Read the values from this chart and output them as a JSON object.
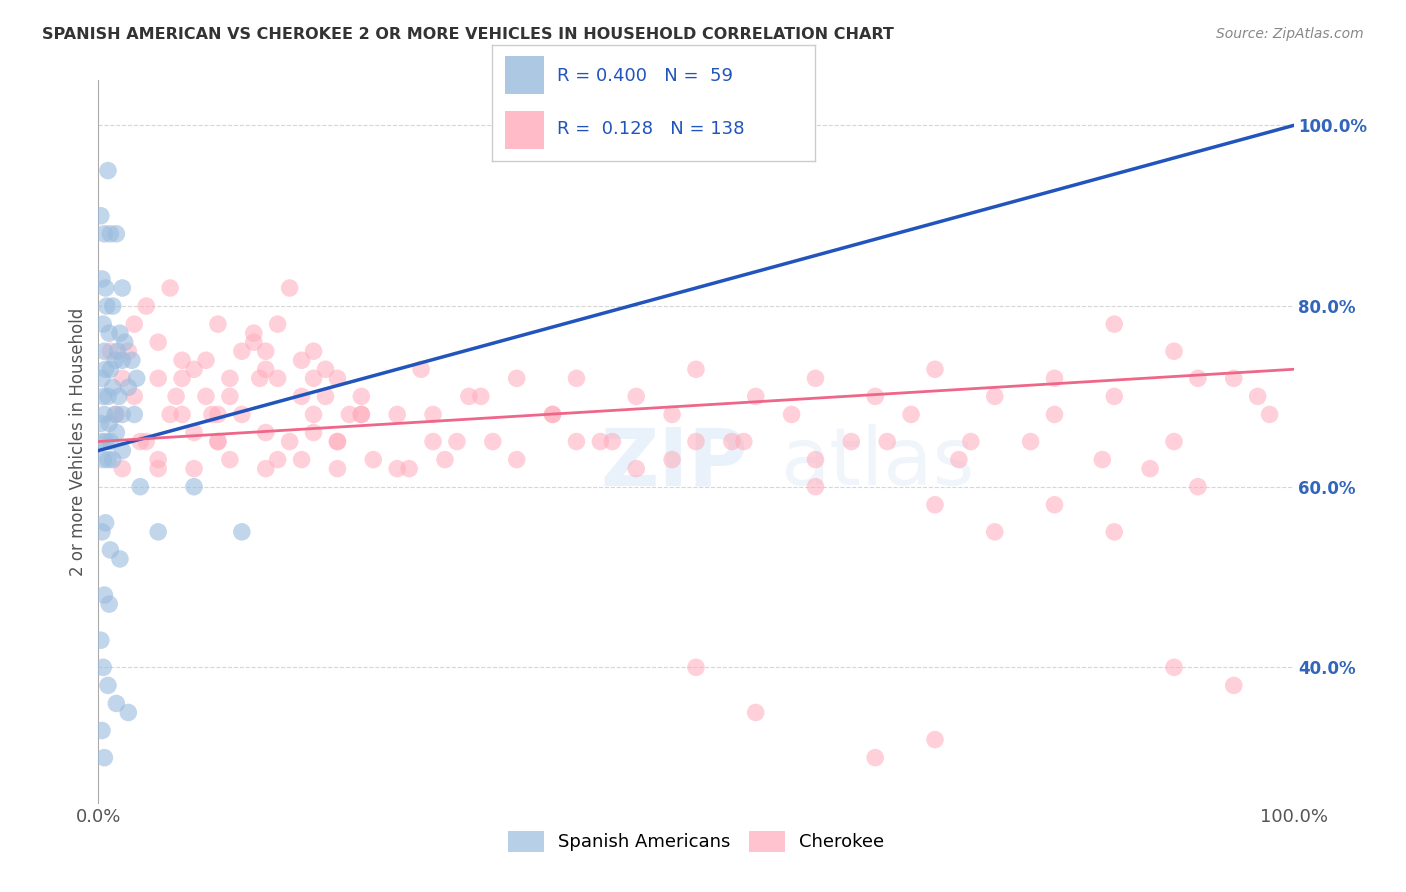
{
  "title": "SPANISH AMERICAN VS CHEROKEE 2 OR MORE VEHICLES IN HOUSEHOLD CORRELATION CHART",
  "source": "Source: ZipAtlas.com",
  "ylabel": "2 or more Vehicles in Household",
  "legend_label1": "Spanish Americans",
  "legend_label2": "Cherokee",
  "R1": "0.400",
  "N1": "59",
  "R2": "0.128",
  "N2": "138",
  "blue_color": "#99BBDD",
  "pink_color": "#FFAABB",
  "blue_line_color": "#2255BB",
  "pink_line_color": "#EE6688",
  "blue_scatter": [
    [
      0.2,
      90
    ],
    [
      0.5,
      88
    ],
    [
      0.8,
      95
    ],
    [
      1.0,
      88
    ],
    [
      0.3,
      83
    ],
    [
      0.6,
      82
    ],
    [
      1.5,
      88
    ],
    [
      2.0,
      82
    ],
    [
      0.4,
      78
    ],
    [
      0.7,
      80
    ],
    [
      1.2,
      80
    ],
    [
      1.8,
      77
    ],
    [
      0.5,
      75
    ],
    [
      0.9,
      77
    ],
    [
      1.6,
      75
    ],
    [
      2.2,
      76
    ],
    [
      0.3,
      72
    ],
    [
      0.6,
      73
    ],
    [
      1.0,
      73
    ],
    [
      1.4,
      74
    ],
    [
      2.0,
      74
    ],
    [
      2.8,
      74
    ],
    [
      0.4,
      70
    ],
    [
      0.8,
      70
    ],
    [
      1.2,
      71
    ],
    [
      1.7,
      70
    ],
    [
      2.5,
      71
    ],
    [
      3.2,
      72
    ],
    [
      0.2,
      67
    ],
    [
      0.5,
      68
    ],
    [
      0.9,
      67
    ],
    [
      1.4,
      68
    ],
    [
      2.0,
      68
    ],
    [
      3.0,
      68
    ],
    [
      0.3,
      65
    ],
    [
      0.6,
      65
    ],
    [
      1.0,
      65
    ],
    [
      1.5,
      66
    ],
    [
      0.4,
      63
    ],
    [
      0.8,
      63
    ],
    [
      1.2,
      63
    ],
    [
      2.0,
      64
    ],
    [
      0.3,
      55
    ],
    [
      0.6,
      56
    ],
    [
      1.0,
      53
    ],
    [
      1.8,
      52
    ],
    [
      0.5,
      48
    ],
    [
      0.9,
      47
    ],
    [
      0.2,
      43
    ],
    [
      0.4,
      40
    ],
    [
      0.8,
      38
    ],
    [
      1.5,
      36
    ],
    [
      0.3,
      33
    ],
    [
      0.5,
      30
    ],
    [
      3.5,
      60
    ],
    [
      5.0,
      55
    ],
    [
      8.0,
      60
    ],
    [
      12.0,
      55
    ],
    [
      2.5,
      35
    ]
  ],
  "pink_scatter": [
    [
      1.0,
      75
    ],
    [
      2.0,
      72
    ],
    [
      3.0,
      78
    ],
    [
      4.0,
      80
    ],
    [
      5.0,
      76
    ],
    [
      6.0,
      82
    ],
    [
      7.0,
      74
    ],
    [
      8.0,
      73
    ],
    [
      9.0,
      70
    ],
    [
      10.0,
      68
    ],
    [
      11.0,
      72
    ],
    [
      12.0,
      75
    ],
    [
      13.0,
      77
    ],
    [
      14.0,
      73
    ],
    [
      15.0,
      78
    ],
    [
      16.0,
      82
    ],
    [
      17.0,
      70
    ],
    [
      18.0,
      75
    ],
    [
      19.0,
      73
    ],
    [
      20.0,
      72
    ],
    [
      3.0,
      70
    ],
    [
      5.0,
      72
    ],
    [
      7.0,
      68
    ],
    [
      9.0,
      74
    ],
    [
      11.0,
      70
    ],
    [
      13.0,
      76
    ],
    [
      15.0,
      72
    ],
    [
      17.0,
      74
    ],
    [
      19.0,
      70
    ],
    [
      21.0,
      68
    ],
    [
      4.0,
      65
    ],
    [
      6.0,
      68
    ],
    [
      8.0,
      66
    ],
    [
      10.0,
      65
    ],
    [
      12.0,
      68
    ],
    [
      14.0,
      66
    ],
    [
      16.0,
      65
    ],
    [
      18.0,
      68
    ],
    [
      20.0,
      65
    ],
    [
      22.0,
      68
    ],
    [
      2.0,
      62
    ],
    [
      5.0,
      63
    ],
    [
      8.0,
      62
    ],
    [
      11.0,
      63
    ],
    [
      14.0,
      62
    ],
    [
      17.0,
      63
    ],
    [
      20.0,
      62
    ],
    [
      23.0,
      63
    ],
    [
      26.0,
      62
    ],
    [
      29.0,
      63
    ],
    [
      1.5,
      68
    ],
    [
      3.5,
      65
    ],
    [
      6.5,
      70
    ],
    [
      9.5,
      68
    ],
    [
      13.5,
      72
    ],
    [
      18.0,
      66
    ],
    [
      22.0,
      70
    ],
    [
      25.0,
      68
    ],
    [
      28.0,
      65
    ],
    [
      32.0,
      70
    ],
    [
      2.5,
      75
    ],
    [
      7.0,
      72
    ],
    [
      10.0,
      78
    ],
    [
      14.0,
      75
    ],
    [
      18.0,
      72
    ],
    [
      22.0,
      68
    ],
    [
      27.0,
      73
    ],
    [
      31.0,
      70
    ],
    [
      35.0,
      72
    ],
    [
      38.0,
      68
    ],
    [
      5.0,
      62
    ],
    [
      10.0,
      65
    ],
    [
      15.0,
      63
    ],
    [
      20.0,
      65
    ],
    [
      25.0,
      62
    ],
    [
      30.0,
      65
    ],
    [
      35.0,
      63
    ],
    [
      40.0,
      65
    ],
    [
      45.0,
      62
    ],
    [
      50.0,
      65
    ],
    [
      28.0,
      68
    ],
    [
      33.0,
      65
    ],
    [
      38.0,
      68
    ],
    [
      43.0,
      65
    ],
    [
      48.0,
      68
    ],
    [
      53.0,
      65
    ],
    [
      58.0,
      68
    ],
    [
      63.0,
      65
    ],
    [
      68.0,
      68
    ],
    [
      73.0,
      65
    ],
    [
      40.0,
      72
    ],
    [
      45.0,
      70
    ],
    [
      50.0,
      73
    ],
    [
      55.0,
      70
    ],
    [
      60.0,
      72
    ],
    [
      65.0,
      70
    ],
    [
      70.0,
      73
    ],
    [
      75.0,
      70
    ],
    [
      80.0,
      72
    ],
    [
      85.0,
      70
    ],
    [
      42.0,
      65
    ],
    [
      48.0,
      63
    ],
    [
      54.0,
      65
    ],
    [
      60.0,
      63
    ],
    [
      66.0,
      65
    ],
    [
      72.0,
      63
    ],
    [
      78.0,
      65
    ],
    [
      84.0,
      63
    ],
    [
      90.0,
      65
    ],
    [
      50.0,
      40
    ],
    [
      55.0,
      35
    ],
    [
      65.0,
      30
    ],
    [
      70.0,
      32
    ],
    [
      80.0,
      58
    ],
    [
      85.0,
      55
    ],
    [
      88.0,
      62
    ],
    [
      92.0,
      60
    ],
    [
      95.0,
      72
    ],
    [
      98.0,
      68
    ],
    [
      90.0,
      40
    ],
    [
      95.0,
      38
    ],
    [
      60.0,
      60
    ],
    [
      70.0,
      58
    ],
    [
      75.0,
      55
    ],
    [
      80.0,
      68
    ],
    [
      85.0,
      78
    ],
    [
      90.0,
      75
    ],
    [
      92.0,
      72
    ],
    [
      97.0,
      70
    ]
  ],
  "xlim": [
    0,
    100
  ],
  "ylim": [
    25,
    105
  ],
  "blue_trend_x0": 0,
  "blue_trend_y0": 64,
  "blue_trend_x1": 100,
  "blue_trend_y1": 100,
  "pink_trend_x0": 0,
  "pink_trend_y0": 65,
  "pink_trend_x1": 100,
  "pink_trend_y1": 73,
  "ytick_vals": [
    40,
    60,
    80,
    100
  ],
  "ytick_labels": [
    "40.0%",
    "60.0%",
    "80.0%",
    "100.0%"
  ],
  "watermark_zip": "ZIP",
  "watermark_atlas": "atlas",
  "background_color": "#FFFFFF",
  "grid_color": "#CCCCCC"
}
